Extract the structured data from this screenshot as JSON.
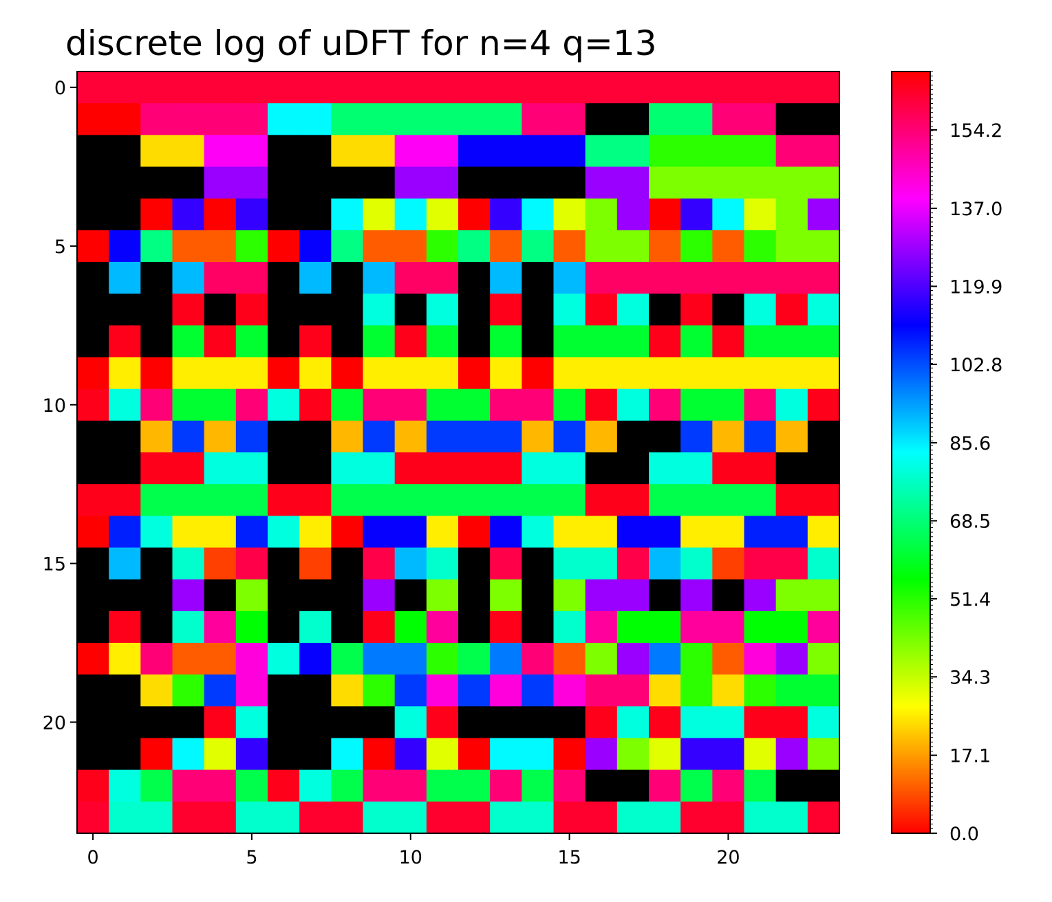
{
  "chart_data": {
    "type": "heatmap",
    "title": "discrete log of uDFT for n=4 q=13",
    "xlabel": "",
    "ylabel": "",
    "x_ticks": [
      0,
      5,
      10,
      15,
      20
    ],
    "y_ticks": [
      0,
      5,
      10,
      15,
      20
    ],
    "colormap": "hsv",
    "masked_color": "#000000",
    "colorbar": {
      "range": [
        0,
        167
      ],
      "tick_values": [
        0.0,
        17.1,
        34.3,
        51.4,
        68.5,
        85.6,
        102.8,
        119.9,
        137.0,
        154.2
      ],
      "tick_labels": [
        "0.0",
        "17.1",
        "34.3",
        "51.4",
        "68.5",
        "85.6",
        "102.8",
        "119.9",
        "137.0",
        "154.2"
      ]
    },
    "rows": 24,
    "cols": 24,
    "values": [
      [
        161,
        161,
        161,
        161,
        161,
        161,
        161,
        161,
        161,
        161,
        161,
        161,
        161,
        161,
        161,
        161,
        161,
        161,
        161,
        161,
        161,
        161,
        161,
        161
      ],
      [
        167,
        167,
        154,
        154,
        154,
        154,
        84,
        84,
        68,
        68,
        68,
        68,
        68,
        68,
        154,
        154,
        null,
        null,
        68,
        68,
        154,
        154,
        null,
        null
      ],
      [
        null,
        null,
        24,
        24,
        140,
        140,
        null,
        null,
        24,
        24,
        140,
        140,
        112,
        112,
        112,
        112,
        70,
        70,
        51,
        51,
        51,
        51,
        154,
        154
      ],
      [
        null,
        null,
        null,
        null,
        128,
        128,
        null,
        null,
        null,
        null,
        128,
        128,
        null,
        null,
        null,
        null,
        128,
        128,
        42,
        42,
        42,
        42,
        42,
        42
      ],
      [
        null,
        null,
        167,
        117,
        167,
        117,
        null,
        null,
        84,
        31,
        84,
        31,
        167,
        117,
        84,
        31,
        42,
        128,
        167,
        117,
        84,
        31,
        42,
        128
      ],
      [
        167,
        112,
        70,
        10,
        10,
        51,
        167,
        112,
        70,
        10,
        10,
        51,
        70,
        10,
        70,
        10,
        42,
        42,
        10,
        51,
        10,
        51,
        42,
        42
      ],
      [
        null,
        91,
        null,
        91,
        156,
        156,
        null,
        91,
        null,
        91,
        156,
        156,
        null,
        91,
        null,
        91,
        156,
        156,
        156,
        156,
        156,
        156,
        156,
        156
      ],
      [
        null,
        null,
        null,
        164,
        null,
        164,
        null,
        null,
        null,
        80,
        null,
        80,
        null,
        164,
        null,
        80,
        164,
        80,
        null,
        164,
        null,
        80,
        164,
        80
      ],
      [
        null,
        164,
        null,
        61,
        164,
        61,
        null,
        164,
        null,
        61,
        164,
        61,
        null,
        61,
        null,
        61,
        61,
        61,
        164,
        61,
        164,
        61,
        61,
        61
      ],
      [
        167,
        26,
        167,
        26,
        26,
        26,
        167,
        26,
        167,
        26,
        26,
        26,
        167,
        26,
        167,
        26,
        26,
        26,
        26,
        26,
        26,
        26,
        26,
        26
      ],
      [
        164,
        80,
        154,
        61,
        61,
        154,
        80,
        164,
        61,
        154,
        154,
        61,
        61,
        154,
        154,
        61,
        164,
        80,
        154,
        61,
        61,
        154,
        80,
        164
      ],
      [
        null,
        null,
        20,
        105,
        20,
        105,
        null,
        null,
        20,
        105,
        20,
        105,
        105,
        105,
        20,
        105,
        20,
        null,
        null,
        105,
        20,
        105,
        20,
        null
      ],
      [
        null,
        null,
        164,
        164,
        80,
        80,
        null,
        null,
        80,
        80,
        164,
        164,
        164,
        164,
        80,
        80,
        null,
        null,
        80,
        80,
        164,
        164,
        null,
        null
      ],
      [
        164,
        164,
        64,
        64,
        64,
        64,
        164,
        164,
        64,
        64,
        64,
        64,
        64,
        64,
        64,
        64,
        164,
        164,
        64,
        64,
        64,
        64,
        164,
        164
      ],
      [
        167,
        108,
        80,
        26,
        26,
        108,
        80,
        26,
        167,
        112,
        112,
        26,
        167,
        112,
        80,
        26,
        26,
        112,
        112,
        26,
        26,
        108,
        108,
        26
      ],
      [
        null,
        91,
        null,
        78,
        7,
        159,
        null,
        7,
        null,
        159,
        91,
        78,
        null,
        159,
        null,
        78,
        78,
        159,
        91,
        78,
        7,
        159,
        159,
        78
      ],
      [
        null,
        null,
        null,
        128,
        null,
        42,
        null,
        null,
        null,
        128,
        null,
        42,
        null,
        42,
        null,
        42,
        128,
        128,
        null,
        128,
        null,
        128,
        42,
        42
      ],
      [
        null,
        164,
        null,
        78,
        150,
        56,
        null,
        78,
        null,
        164,
        56,
        150,
        null,
        164,
        null,
        78,
        150,
        56,
        56,
        150,
        150,
        56,
        56,
        150
      ],
      [
        167,
        26,
        154,
        10,
        10,
        143,
        80,
        112,
        64,
        98,
        98,
        51,
        64,
        98,
        154,
        10,
        42,
        128,
        98,
        51,
        10,
        143,
        128,
        42
      ],
      [
        null,
        null,
        24,
        51,
        105,
        143,
        null,
        null,
        24,
        51,
        105,
        143,
        105,
        143,
        105,
        143,
        154,
        154,
        24,
        51,
        24,
        51,
        61,
        61
      ],
      [
        null,
        null,
        null,
        null,
        164,
        80,
        null,
        null,
        null,
        null,
        80,
        164,
        null,
        null,
        null,
        null,
        164,
        80,
        164,
        80,
        80,
        164,
        164,
        80
      ],
      [
        null,
        null,
        167,
        84,
        31,
        117,
        null,
        null,
        84,
        167,
        117,
        31,
        167,
        84,
        84,
        167,
        128,
        42,
        31,
        117,
        117,
        31,
        128,
        42
      ],
      [
        164,
        80,
        64,
        154,
        154,
        64,
        164,
        80,
        64,
        154,
        154,
        64,
        64,
        154,
        64,
        154,
        null,
        null,
        154,
        64,
        154,
        64,
        null,
        null
      ],
      [
        162,
        78,
        78,
        162,
        162,
        78,
        78,
        162,
        162,
        78,
        78,
        162,
        162,
        78,
        78,
        162,
        162,
        78,
        78,
        162,
        162,
        78,
        78,
        162
      ]
    ]
  }
}
